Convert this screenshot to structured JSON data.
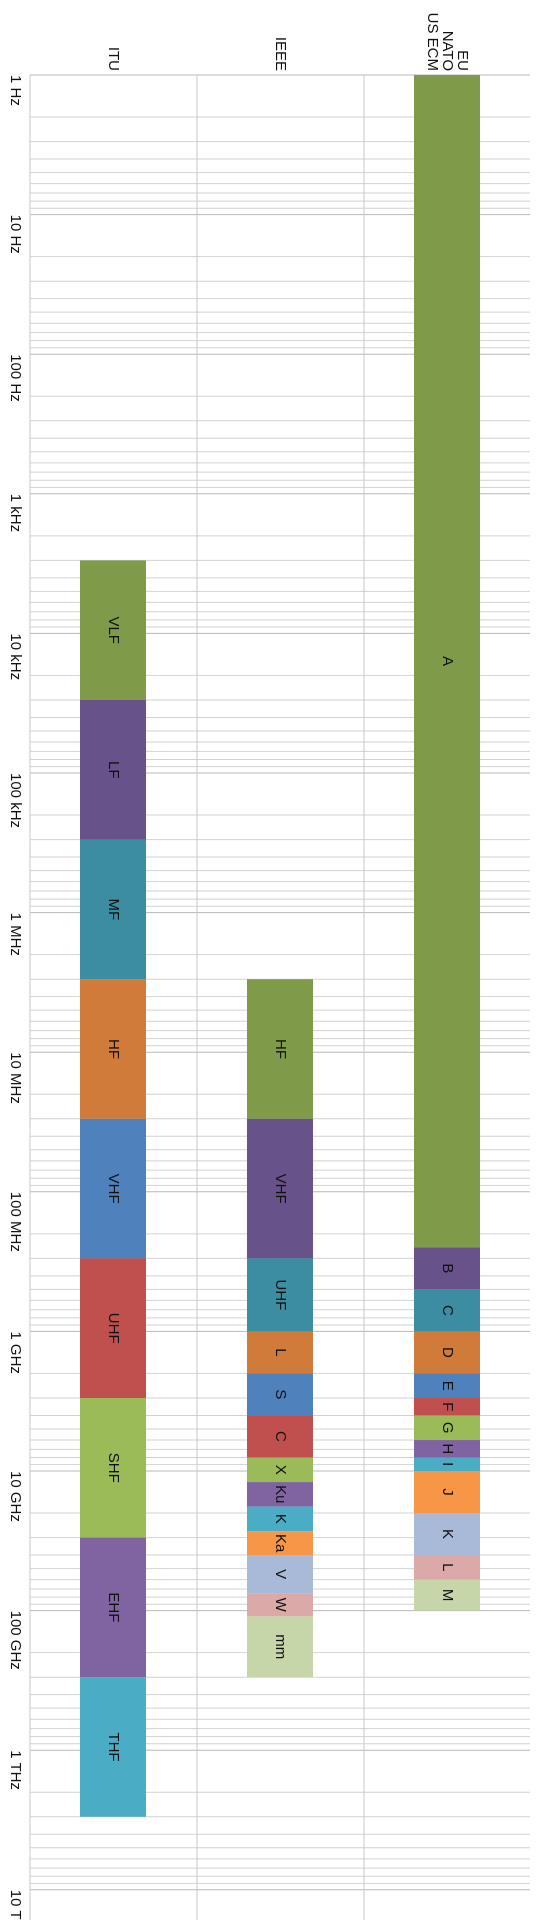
{
  "chart_data": {
    "type": "bar",
    "title": "",
    "xlabel": "",
    "ylabel": "",
    "scale": "log",
    "ylim_hz": [
      1,
      10000000000000
    ],
    "grid": true,
    "tick_labels": [
      "1 Hz",
      "10 Hz",
      "100 Hz",
      "1 kHz",
      "10 kHz",
      "100 kHz",
      "1 MHz",
      "10 MHz",
      "100 MHz",
      "1 GHz",
      "10 GHz",
      "100 GHz",
      "1 THz",
      "10 THz"
    ],
    "categories": [
      "ITU",
      "IEEE",
      "EU NATO US ECM"
    ],
    "category_lines": [
      [
        "ITU"
      ],
      [
        "IEEE"
      ],
      [
        "EU",
        "NATO",
        "US ECM"
      ]
    ],
    "series": [
      {
        "name": "ITU",
        "bands": [
          {
            "label": "VLF",
            "from_hz": 3000,
            "to_hz": 30000,
            "color": "#7f9a48"
          },
          {
            "label": "LF",
            "from_hz": 30000,
            "to_hz": 300000,
            "color": "#67538a"
          },
          {
            "label": "MF",
            "from_hz": 300000,
            "to_hz": 3000000,
            "color": "#3d8da2"
          },
          {
            "label": "HF",
            "from_hz": 3000000,
            "to_hz": 30000000,
            "color": "#d07b3a"
          },
          {
            "label": "VHF",
            "from_hz": 30000000,
            "to_hz": 300000000,
            "color": "#4f81bd"
          },
          {
            "label": "UHF",
            "from_hz": 300000000,
            "to_hz": 3000000000,
            "color": "#c0504d"
          },
          {
            "label": "SHF",
            "from_hz": 3000000000,
            "to_hz": 30000000000,
            "color": "#9bbb59"
          },
          {
            "label": "EHF",
            "from_hz": 30000000000,
            "to_hz": 300000000000,
            "color": "#8064a2"
          },
          {
            "label": "THF",
            "from_hz": 300000000000,
            "to_hz": 3000000000000,
            "color": "#4bacc6"
          }
        ]
      },
      {
        "name": "IEEE",
        "bands": [
          {
            "label": "HF",
            "from_hz": 3000000,
            "to_hz": 30000000,
            "color": "#7f9a48"
          },
          {
            "label": "VHF",
            "from_hz": 30000000,
            "to_hz": 300000000,
            "color": "#67538a"
          },
          {
            "label": "UHF",
            "from_hz": 300000000,
            "to_hz": 1000000000,
            "color": "#3d8da2"
          },
          {
            "label": "L",
            "from_hz": 1000000000,
            "to_hz": 2000000000,
            "color": "#d07b3a"
          },
          {
            "label": "S",
            "from_hz": 2000000000,
            "to_hz": 4000000000,
            "color": "#4f81bd"
          },
          {
            "label": "C",
            "from_hz": 4000000000,
            "to_hz": 8000000000,
            "color": "#c0504d"
          },
          {
            "label": "X",
            "from_hz": 8000000000,
            "to_hz": 12000000000,
            "color": "#9bbb59"
          },
          {
            "label": "Ku",
            "from_hz": 12000000000,
            "to_hz": 18000000000,
            "color": "#8064a2"
          },
          {
            "label": "K",
            "from_hz": 18000000000,
            "to_hz": 27000000000,
            "color": "#4bacc6"
          },
          {
            "label": "Ka",
            "from_hz": 27000000000,
            "to_hz": 40000000000,
            "color": "#f79646"
          },
          {
            "label": "V",
            "from_hz": 40000000000,
            "to_hz": 75000000000,
            "color": "#a9b9d8"
          },
          {
            "label": "W",
            "from_hz": 75000000000,
            "to_hz": 110000000000,
            "color": "#dba9a8"
          },
          {
            "label": "mm",
            "from_hz": 110000000000,
            "to_hz": 300000000000,
            "color": "#c6d6a9"
          }
        ]
      },
      {
        "name": "EU NATO US ECM",
        "bands": [
          {
            "label": "A",
            "from_hz": 1,
            "to_hz": 250000000,
            "color": "#7f9a48"
          },
          {
            "label": "B",
            "from_hz": 250000000,
            "to_hz": 500000000,
            "color": "#67538a"
          },
          {
            "label": "C",
            "from_hz": 500000000,
            "to_hz": 1000000000,
            "color": "#3d8da2"
          },
          {
            "label": "D",
            "from_hz": 1000000000,
            "to_hz": 2000000000,
            "color": "#d07b3a"
          },
          {
            "label": "E",
            "from_hz": 2000000000,
            "to_hz": 3000000000,
            "color": "#4f81bd"
          },
          {
            "label": "F",
            "from_hz": 3000000000,
            "to_hz": 4000000000,
            "color": "#c0504d"
          },
          {
            "label": "G",
            "from_hz": 4000000000,
            "to_hz": 6000000000,
            "color": "#9bbb59"
          },
          {
            "label": "H",
            "from_hz": 6000000000,
            "to_hz": 8000000000,
            "color": "#8064a2"
          },
          {
            "label": "I",
            "from_hz": 8000000000,
            "to_hz": 10000000000,
            "color": "#4bacc6"
          },
          {
            "label": "J",
            "from_hz": 10000000000,
            "to_hz": 20000000000,
            "color": "#f79646"
          },
          {
            "label": "K",
            "from_hz": 20000000000,
            "to_hz": 40000000000,
            "color": "#a9b9d8"
          },
          {
            "label": "L",
            "from_hz": 40000000000,
            "to_hz": 60000000000,
            "color": "#dba9a8"
          },
          {
            "label": "M",
            "from_hz": 60000000000,
            "to_hz": 100000000000,
            "color": "#c6d6a9"
          }
        ]
      }
    ]
  }
}
